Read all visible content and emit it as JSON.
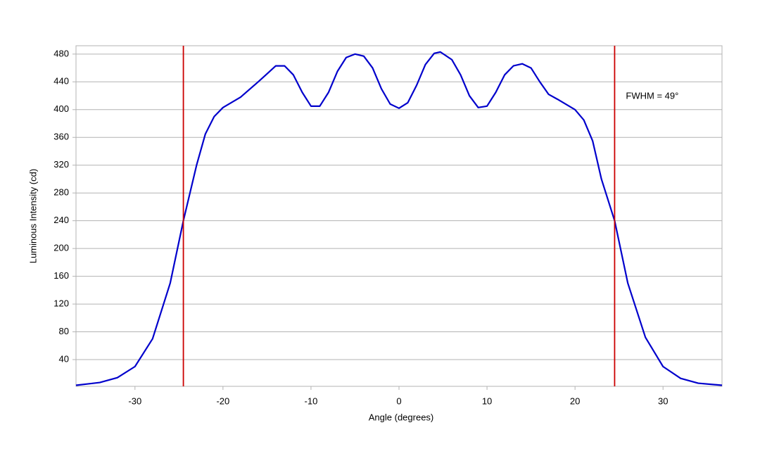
{
  "chart_data": {
    "type": "line",
    "x_label": "Angle (degrees)",
    "y_label": "Luminous Intensity (cd)",
    "annotation": "FWHM = 49°",
    "x": [
      -36.7,
      -34,
      -32,
      -30,
      -28,
      -26,
      -24.5,
      -23,
      -22,
      -21,
      -20,
      -18,
      -16,
      -14,
      -13,
      -12,
      -11,
      -10,
      -9,
      -8,
      -7,
      -6,
      -5,
      -4,
      -3,
      -2,
      -1,
      0,
      1,
      2,
      3,
      4,
      4.7,
      6,
      7,
      8,
      9,
      10,
      11,
      12,
      13,
      14,
      15,
      16,
      17,
      18,
      20,
      21,
      22,
      23,
      24.5,
      26,
      28,
      30,
      32,
      34,
      36.7
    ],
    "series": [
      {
        "name": "Luminous Intensity",
        "color": "#0000cc",
        "values": [
          3,
          7,
          14,
          30,
          70,
          150,
          240,
          320,
          365,
          390,
          403,
          418,
          440,
          463,
          463,
          450,
          425,
          405,
          405,
          425,
          455,
          475,
          480,
          477,
          460,
          430,
          408,
          402,
          410,
          435,
          465,
          481,
          483,
          472,
          450,
          420,
          403,
          405,
          425,
          450,
          463,
          466,
          460,
          440,
          422,
          415,
          400,
          385,
          355,
          300,
          240,
          150,
          72,
          30,
          13,
          6,
          3
        ]
      }
    ],
    "reference_lines": [
      -24.5,
      24.5
    ],
    "reference_color": "#cc0000",
    "xlim": [
      -36.7,
      36.7
    ],
    "ylim": [
      1.5,
      492
    ],
    "xticks": [
      -30,
      -20,
      -10,
      0,
      10,
      20,
      30
    ],
    "yticks": [
      40,
      80,
      120,
      160,
      200,
      240,
      280,
      320,
      360,
      400,
      440,
      480
    ],
    "grid": true
  }
}
